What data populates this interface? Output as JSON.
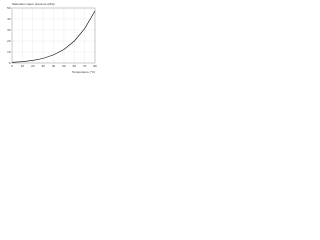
{
  "chart_data": {
    "type": "line",
    "title": "Saturation vapor pressure (kPa)",
    "x_label": "Temperature (°C)",
    "x": [
      0,
      10,
      20,
      30,
      40,
      50,
      60,
      70,
      80
    ],
    "series": [
      {
        "name": "Vapor pressure",
        "color": "#000000",
        "values": [
          0.6,
          1.2,
          2.3,
          4.2,
          7.4,
          12.3,
          19.9,
          31.2,
          47.4
        ]
      }
    ],
    "xlim": [
      0,
      80
    ],
    "xticks": [
      0,
      10,
      20,
      30,
      40,
      50,
      60,
      70,
      80
    ],
    "ylim": [
      0,
      50
    ],
    "yticks": [
      0,
      10,
      20,
      30,
      40,
      50
    ],
    "grid": true
  }
}
